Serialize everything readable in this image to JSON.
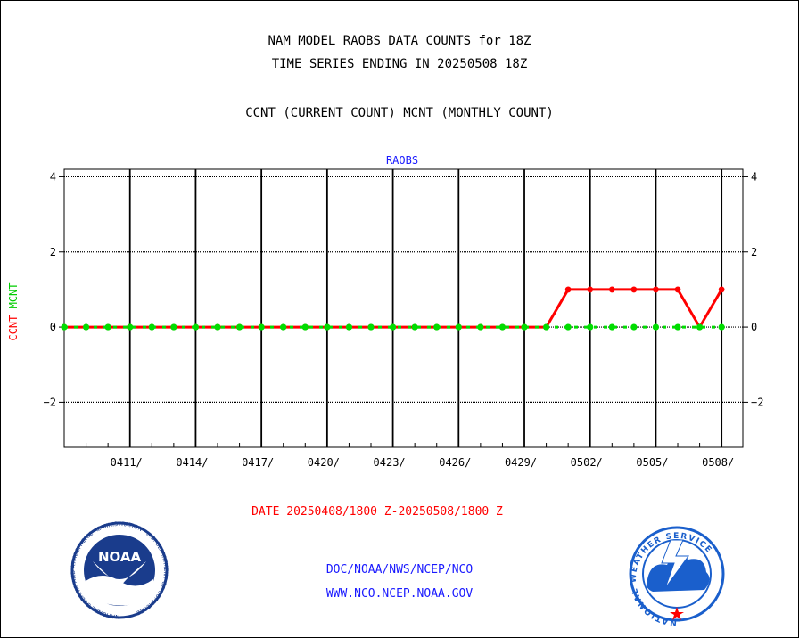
{
  "header": {
    "title_line1": "NAM MODEL RAOBS DATA COUNTS for 18Z",
    "title_line2": "TIME SERIES ENDING IN 20250508 18Z",
    "subtitle": "CCNT (CURRENT COUNT) MCNT (MONTHLY COUNT)"
  },
  "chart_data": {
    "type": "line",
    "title": "RAOBS",
    "ylabel_series1": "CCNT",
    "ylabel_series2": "MCNT",
    "xlabel": "DATE 20250408/1800 Z-20250508/1800 Z",
    "ylim": [
      -3.2,
      4.2
    ],
    "yticks": [
      -2,
      0,
      2,
      4
    ],
    "ytick_labels": [
      "−2",
      "0",
      "2",
      "4"
    ],
    "x_range": [
      "2025-04-08",
      "2025-05-08"
    ],
    "xtick_dates": [
      "2025-04-11",
      "2025-04-14",
      "2025-04-17",
      "2025-04-20",
      "2025-04-23",
      "2025-04-26",
      "2025-04-29",
      "2025-05-02",
      "2025-05-05",
      "2025-05-08"
    ],
    "xtick_labels": [
      "0411/",
      "0414/",
      "0417/",
      "0420/",
      "0423/",
      "0426/",
      "0429/",
      "0502/",
      "0505/",
      "0508/"
    ],
    "grid": true,
    "colors": {
      "ccnt": "#ff0000",
      "mcnt": "#00dd00",
      "title": "#1a1aff",
      "xlabel": "#ff0000"
    },
    "series": [
      {
        "name": "CCNT",
        "x": [
          "2025-04-08",
          "2025-04-09",
          "2025-04-10",
          "2025-04-11",
          "2025-04-12",
          "2025-04-13",
          "2025-04-14",
          "2025-04-15",
          "2025-04-16",
          "2025-04-17",
          "2025-04-18",
          "2025-04-19",
          "2025-04-20",
          "2025-04-21",
          "2025-04-22",
          "2025-04-23",
          "2025-04-24",
          "2025-04-25",
          "2025-04-26",
          "2025-04-27",
          "2025-04-28",
          "2025-04-29",
          "2025-04-30",
          "2025-05-01",
          "2025-05-02",
          "2025-05-03",
          "2025-05-04",
          "2025-05-05",
          "2025-05-06",
          "2025-05-07",
          "2025-05-08"
        ],
        "values": [
          0,
          0,
          0,
          0,
          0,
          0,
          0,
          0,
          0,
          0,
          0,
          0,
          0,
          0,
          0,
          0,
          0,
          0,
          0,
          0,
          0,
          0,
          0,
          1,
          1,
          1,
          1,
          1,
          1,
          0,
          1
        ]
      },
      {
        "name": "MCNT",
        "x": [
          "2025-04-08",
          "2025-04-09",
          "2025-04-10",
          "2025-04-11",
          "2025-04-12",
          "2025-04-13",
          "2025-04-14",
          "2025-04-15",
          "2025-04-16",
          "2025-04-17",
          "2025-04-18",
          "2025-04-19",
          "2025-04-20",
          "2025-04-21",
          "2025-04-22",
          "2025-04-23",
          "2025-04-24",
          "2025-04-25",
          "2025-04-26",
          "2025-04-27",
          "2025-04-28",
          "2025-04-29",
          "2025-04-30",
          "2025-05-01",
          "2025-05-02",
          "2025-05-03",
          "2025-05-04",
          "2025-05-05",
          "2025-05-06",
          "2025-05-07",
          "2025-05-08"
        ],
        "values": [
          0,
          0,
          0,
          0,
          0,
          0,
          0,
          0,
          0,
          0,
          0,
          0,
          0,
          0,
          0,
          0,
          0,
          0,
          0,
          0,
          0,
          0,
          0,
          0,
          0,
          0,
          0,
          0,
          0,
          0,
          0
        ]
      }
    ]
  },
  "logos": {
    "left_label": "NOAA",
    "left_ring_text": "NATIONAL OCEANIC AND ATMOSPHERIC ADMINISTRATION · U.S. DEPARTMENT OF COMMERCE ·",
    "right_ring_text": "NATIONAL WEATHER SERVICE",
    "noaa_blue": "#1a3c8c",
    "nws_blue": "#1a5fcc"
  },
  "footer": {
    "line1": "DOC/NOAA/NWS/NCEP/NCO",
    "line2": "WWW.NCO.NCEP.NOAA.GOV"
  }
}
